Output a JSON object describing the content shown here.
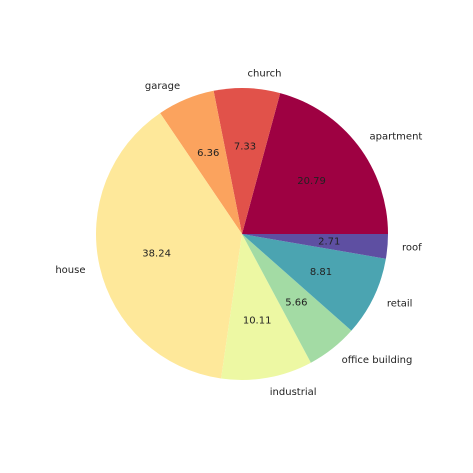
{
  "chart_data": {
    "type": "pie",
    "categories": [
      "apartment",
      "church",
      "garage",
      "house",
      "industrial",
      "office building",
      "retail",
      "roof"
    ],
    "values": [
      20.79,
      7.33,
      6.36,
      38.24,
      10.11,
      5.66,
      8.81,
      2.71
    ],
    "colors": [
      "#9e0142",
      "#e1524a",
      "#fba35e",
      "#fee89a",
      "#edf8a3",
      "#a3dba4",
      "#4ba4b1",
      "#5e4fa2"
    ]
  }
}
